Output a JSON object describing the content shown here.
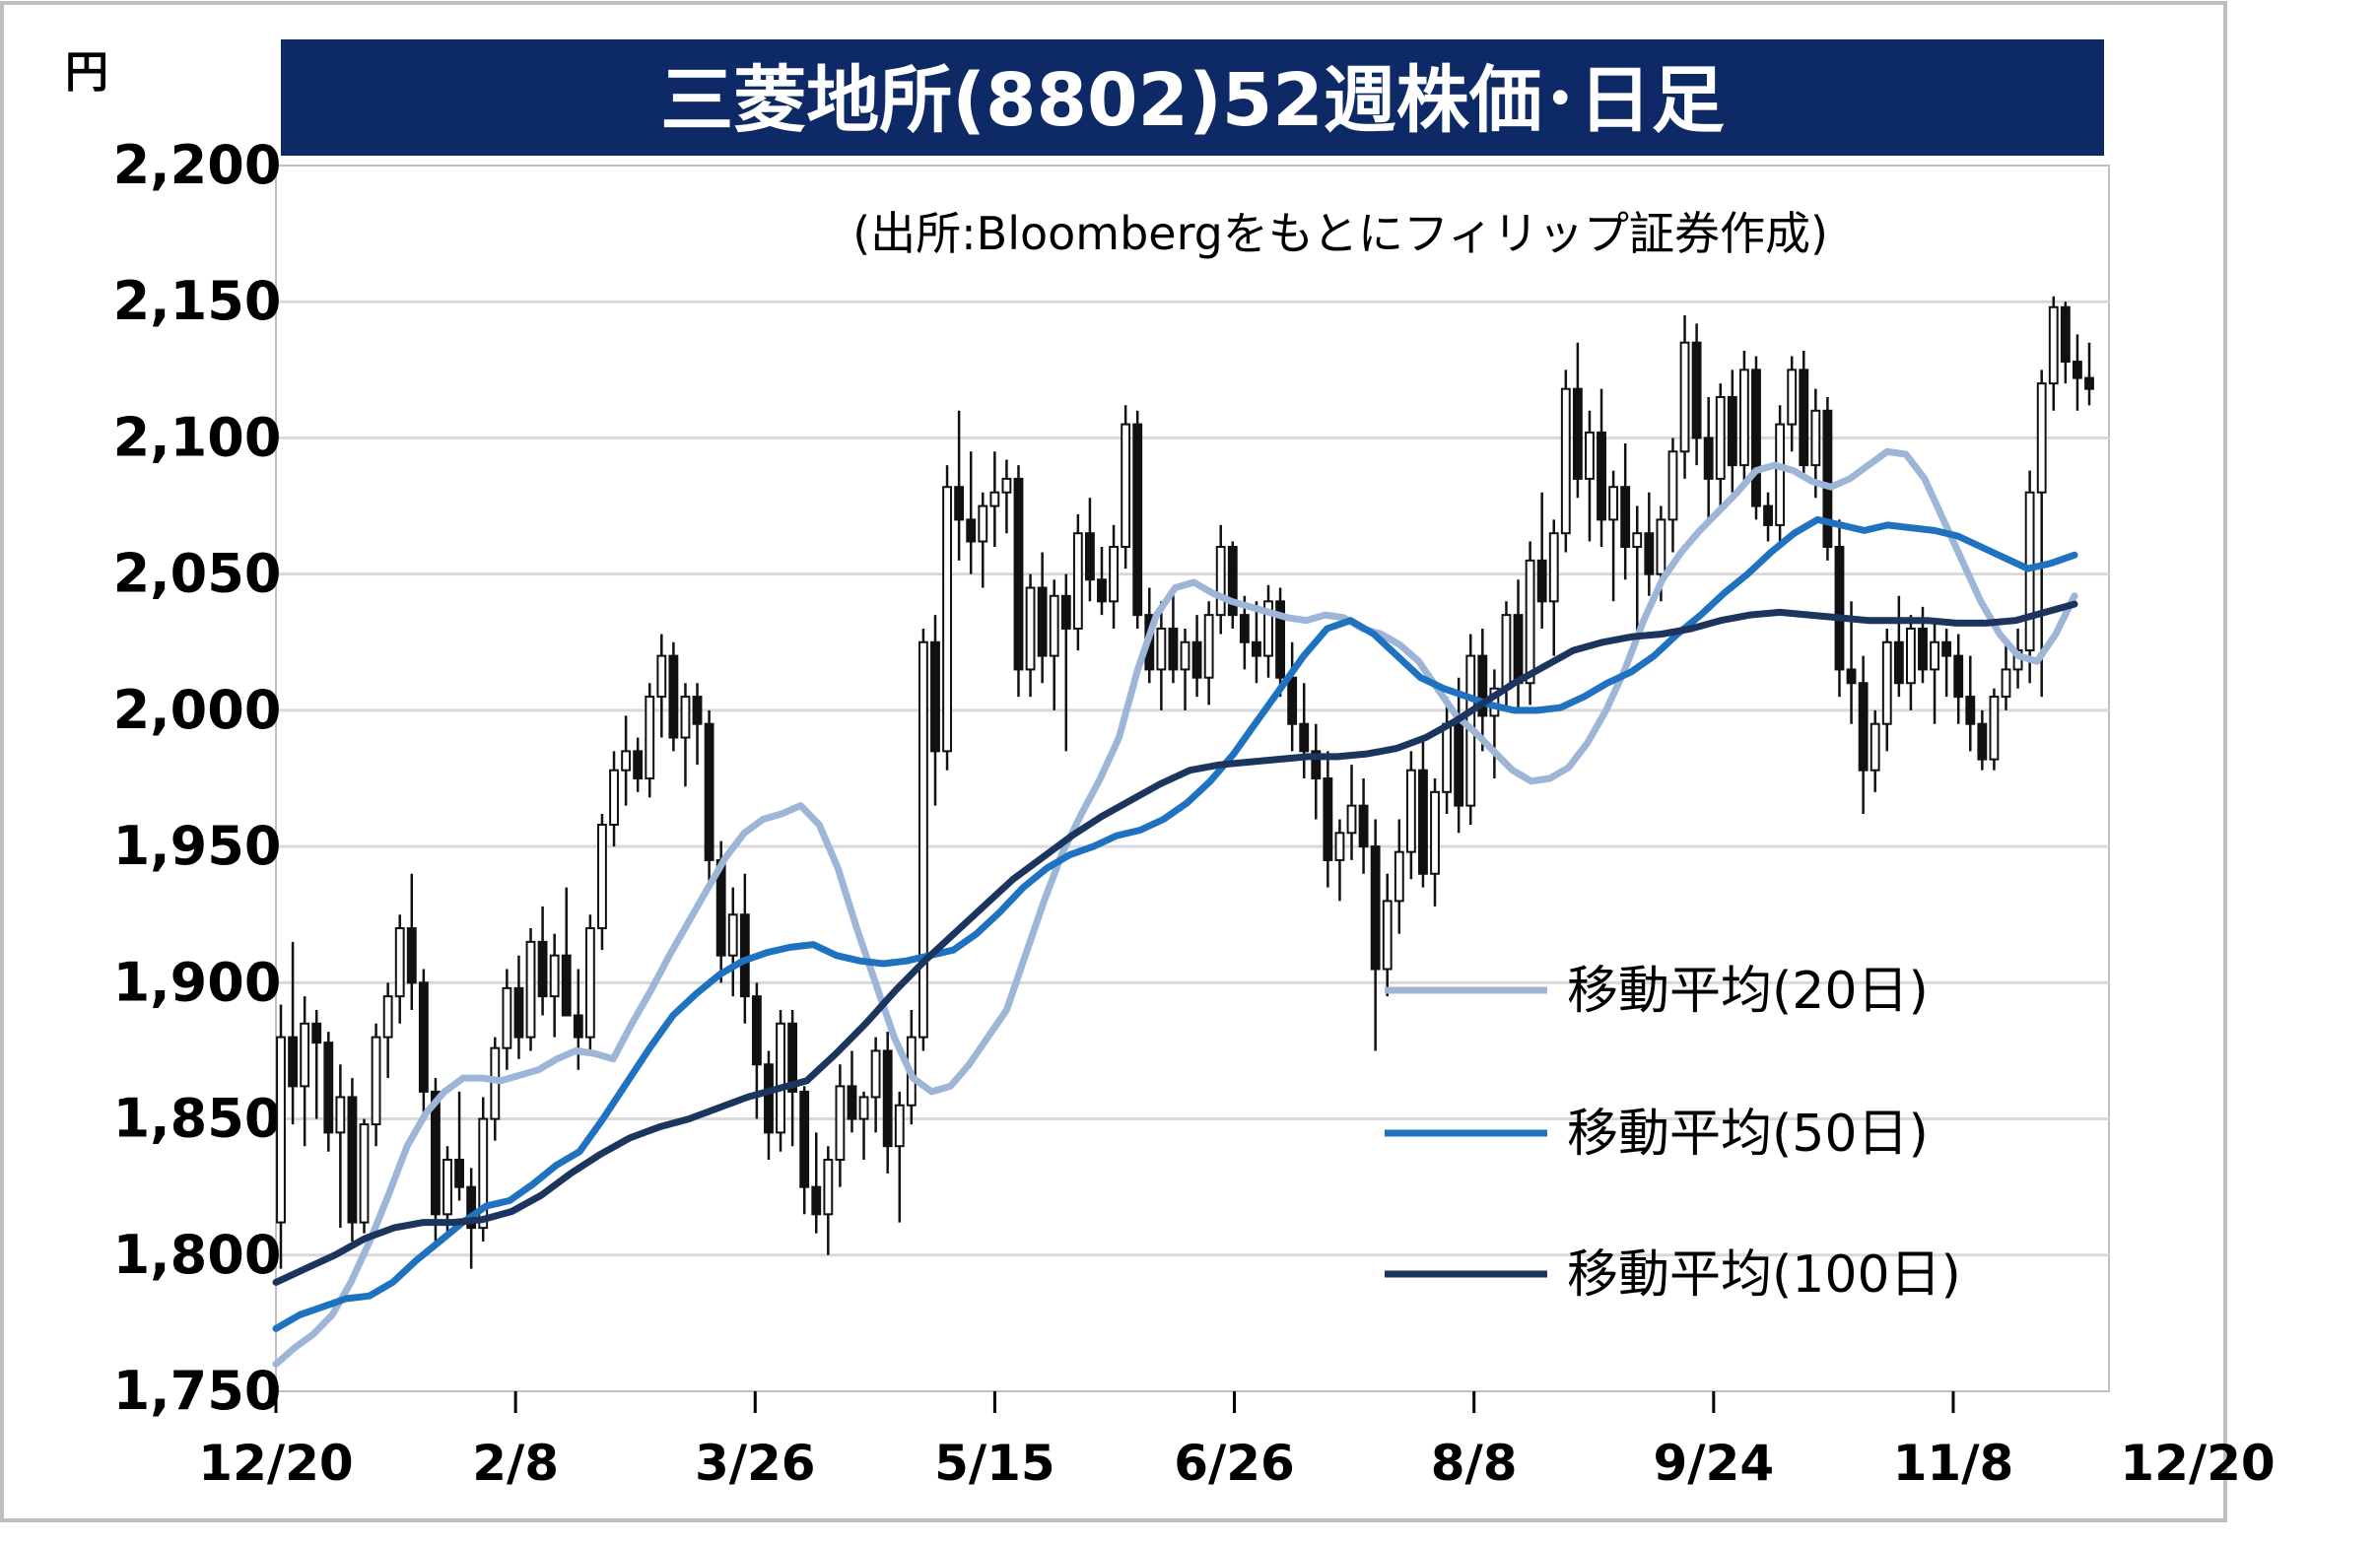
{
  "chart_data": {
    "type": "candlestick",
    "title": "三菱地所(8802)52週株価･日足",
    "source_note": "(出所:Bloombergをもとにフィリップ証券作成)",
    "y_unit": "円",
    "ylim": [
      1750,
      2200
    ],
    "y_ticks": [
      "1,750",
      "1,800",
      "1,850",
      "1,900",
      "1,950",
      "2,000",
      "2,050",
      "2,100",
      "2,150",
      "2,200"
    ],
    "x_ticks": [
      "12/20",
      "2/8",
      "3/26",
      "5/15",
      "6/26",
      "8/8",
      "9/24",
      "11/8",
      "12/20"
    ],
    "grid": true,
    "legend_position": "bottom-right",
    "colors": {
      "title_bg": "#0d2a66",
      "ma20": "#9db5d6",
      "ma50": "#1f72c0",
      "ma100": "#1c355e",
      "candle": "#111111"
    },
    "candles_ohlc": [
      [
        1812,
        1892,
        1795,
        1880
      ],
      [
        1880,
        1915,
        1848,
        1862
      ],
      [
        1862,
        1895,
        1840,
        1885
      ],
      [
        1885,
        1890,
        1850,
        1878
      ],
      [
        1878,
        1882,
        1838,
        1845
      ],
      [
        1845,
        1870,
        1810,
        1858
      ],
      [
        1858,
        1865,
        1805,
        1812
      ],
      [
        1812,
        1850,
        1808,
        1848
      ],
      [
        1848,
        1885,
        1840,
        1880
      ],
      [
        1880,
        1900,
        1865,
        1895
      ],
      [
        1895,
        1925,
        1885,
        1920
      ],
      [
        1920,
        1940,
        1890,
        1900
      ],
      [
        1900,
        1905,
        1850,
        1860
      ],
      [
        1860,
        1865,
        1805,
        1815
      ],
      [
        1815,
        1840,
        1808,
        1835
      ],
      [
        1835,
        1860,
        1820,
        1825
      ],
      [
        1825,
        1832,
        1795,
        1810
      ],
      [
        1810,
        1858,
        1805,
        1850
      ],
      [
        1850,
        1880,
        1842,
        1876
      ],
      [
        1876,
        1905,
        1868,
        1898
      ],
      [
        1898,
        1910,
        1872,
        1880
      ],
      [
        1880,
        1920,
        1875,
        1915
      ],
      [
        1915,
        1928,
        1888,
        1895
      ],
      [
        1895,
        1918,
        1880,
        1910
      ],
      [
        1910,
        1935,
        1898,
        1888
      ],
      [
        1888,
        1905,
        1868,
        1880
      ],
      [
        1880,
        1925,
        1875,
        1920
      ],
      [
        1920,
        1962,
        1912,
        1958
      ],
      [
        1958,
        1985,
        1950,
        1978
      ],
      [
        1978,
        1998,
        1965,
        1985
      ],
      [
        1985,
        1990,
        1970,
        1975
      ],
      [
        1975,
        2010,
        1968,
        2005
      ],
      [
        2005,
        2028,
        1990,
        2020
      ],
      [
        2020,
        2025,
        1985,
        1990
      ],
      [
        1990,
        2010,
        1972,
        2005
      ],
      [
        2005,
        2010,
        1980,
        1995
      ],
      [
        1995,
        2000,
        1935,
        1945
      ],
      [
        1945,
        1952,
        1900,
        1910
      ],
      [
        1910,
        1935,
        1895,
        1925
      ],
      [
        1925,
        1940,
        1885,
        1895
      ],
      [
        1895,
        1900,
        1850,
        1870
      ],
      [
        1870,
        1875,
        1835,
        1845
      ],
      [
        1845,
        1890,
        1838,
        1885
      ],
      [
        1885,
        1890,
        1840,
        1860
      ],
      [
        1860,
        1862,
        1815,
        1825
      ],
      [
        1825,
        1845,
        1808,
        1815
      ],
      [
        1815,
        1840,
        1800,
        1835
      ],
      [
        1835,
        1870,
        1825,
        1862
      ],
      [
        1862,
        1875,
        1845,
        1850
      ],
      [
        1850,
        1860,
        1835,
        1858
      ],
      [
        1858,
        1880,
        1845,
        1875
      ],
      [
        1875,
        1882,
        1830,
        1840
      ],
      [
        1840,
        1860,
        1812,
        1855
      ],
      [
        1855,
        1890,
        1848,
        1880
      ],
      [
        1880,
        2030,
        1875,
        2025
      ],
      [
        2025,
        2035,
        1965,
        1985
      ],
      [
        1985,
        2090,
        1978,
        2082
      ],
      [
        2082,
        2110,
        2055,
        2070
      ],
      [
        2070,
        2095,
        2050,
        2062
      ],
      [
        2062,
        2080,
        2045,
        2075
      ],
      [
        2075,
        2095,
        2060,
        2080
      ],
      [
        2080,
        2092,
        2065,
        2085
      ],
      [
        2085,
        2090,
        2005,
        2015
      ],
      [
        2015,
        2050,
        2005,
        2045
      ],
      [
        2045,
        2058,
        2010,
        2020
      ],
      [
        2020,
        2048,
        2000,
        2042
      ],
      [
        2042,
        2050,
        1985,
        2030
      ],
      [
        2030,
        2072,
        2022,
        2065
      ],
      [
        2065,
        2078,
        2040,
        2048
      ],
      [
        2048,
        2060,
        2035,
        2040
      ],
      [
        2040,
        2068,
        2030,
        2060
      ],
      [
        2060,
        2112,
        2052,
        2105
      ],
      [
        2105,
        2110,
        2030,
        2035
      ],
      [
        2035,
        2045,
        2010,
        2015
      ],
      [
        2015,
        2040,
        2000,
        2030
      ],
      [
        2030,
        2045,
        2010,
        2015
      ],
      [
        2015,
        2030,
        2000,
        2025
      ],
      [
        2025,
        2035,
        2005,
        2012
      ],
      [
        2012,
        2040,
        2002,
        2035
      ],
      [
        2035,
        2068,
        2028,
        2060
      ],
      [
        2060,
        2062,
        2030,
        2035
      ],
      [
        2035,
        2042,
        2015,
        2025
      ],
      [
        2025,
        2040,
        2010,
        2020
      ],
      [
        2020,
        2046,
        2012,
        2040
      ],
      [
        2040,
        2045,
        2005,
        2012
      ],
      [
        2012,
        2025,
        1985,
        1995
      ],
      [
        1995,
        2010,
        1975,
        1985
      ],
      [
        1985,
        1995,
        1960,
        1975
      ],
      [
        1975,
        1985,
        1935,
        1945
      ],
      [
        1945,
        1960,
        1930,
        1955
      ],
      [
        1955,
        1980,
        1945,
        1965
      ],
      [
        1965,
        1975,
        1940,
        1950
      ],
      [
        1950,
        1960,
        1875,
        1905
      ],
      [
        1905,
        1940,
        1895,
        1930
      ],
      [
        1930,
        1960,
        1918,
        1948
      ],
      [
        1948,
        1985,
        1938,
        1978
      ],
      [
        1978,
        1990,
        1935,
        1940
      ],
      [
        1940,
        1975,
        1928,
        1970
      ],
      [
        1970,
        2005,
        1962,
        1995
      ],
      [
        1995,
        2012,
        1955,
        1965
      ],
      [
        1965,
        2028,
        1958,
        2020
      ],
      [
        2020,
        2030,
        1985,
        1998
      ],
      [
        1998,
        2015,
        1975,
        2008
      ],
      [
        2008,
        2040,
        2000,
        2035
      ],
      [
        2035,
        2048,
        2000,
        2010
      ],
      [
        2010,
        2062,
        2002,
        2055
      ],
      [
        2055,
        2080,
        2030,
        2040
      ],
      [
        2040,
        2070,
        2020,
        2065
      ],
      [
        2065,
        2125,
        2058,
        2118
      ],
      [
        2118,
        2135,
        2078,
        2085
      ],
      [
        2085,
        2110,
        2062,
        2102
      ],
      [
        2102,
        2118,
        2060,
        2070
      ],
      [
        2070,
        2088,
        2040,
        2082
      ],
      [
        2082,
        2098,
        2048,
        2060
      ],
      [
        2060,
        2075,
        2025,
        2065
      ],
      [
        2065,
        2080,
        2042,
        2050
      ],
      [
        2050,
        2075,
        2040,
        2070
      ],
      [
        2070,
        2100,
        2058,
        2095
      ],
      [
        2095,
        2145,
        2085,
        2135
      ],
      [
        2135,
        2142,
        2090,
        2100
      ],
      [
        2100,
        2115,
        2068,
        2085
      ],
      [
        2085,
        2120,
        2075,
        2115
      ],
      [
        2115,
        2125,
        2080,
        2090
      ],
      [
        2090,
        2132,
        2082,
        2125
      ],
      [
        2125,
        2130,
        2070,
        2075
      ],
      [
        2075,
        2080,
        2062,
        2068
      ],
      [
        2068,
        2112,
        2060,
        2105
      ],
      [
        2105,
        2130,
        2095,
        2125
      ],
      [
        2125,
        2132,
        2085,
        2090
      ],
      [
        2090,
        2118,
        2078,
        2110
      ],
      [
        2110,
        2115,
        2055,
        2060
      ],
      [
        2060,
        2070,
        2005,
        2015
      ],
      [
        2015,
        2040,
        1995,
        2010
      ],
      [
        2010,
        2020,
        1962,
        1978
      ],
      [
        1978,
        2000,
        1970,
        1995
      ],
      [
        1995,
        2030,
        1985,
        2025
      ],
      [
        2025,
        2042,
        2005,
        2010
      ],
      [
        2010,
        2035,
        2000,
        2030
      ],
      [
        2030,
        2038,
        2010,
        2015
      ],
      [
        2015,
        2032,
        1995,
        2025
      ],
      [
        2025,
        2030,
        2005,
        2020
      ],
      [
        2020,
        2028,
        1995,
        2005
      ],
      [
        2005,
        2020,
        1985,
        1995
      ],
      [
        1995,
        2000,
        1978,
        1982
      ],
      [
        1982,
        2008,
        1978,
        2005
      ],
      [
        2005,
        2025,
        2000,
        2015
      ],
      [
        2015,
        2030,
        2008,
        2022
      ],
      [
        2022,
        2088,
        2010,
        2080
      ],
      [
        2080,
        2125,
        2005,
        2120
      ],
      [
        2120,
        2152,
        2110,
        2148
      ],
      [
        2148,
        2150,
        2120,
        2128
      ],
      [
        2128,
        2138,
        2110,
        2122
      ],
      [
        2122,
        2135,
        2112,
        2118
      ]
    ],
    "series": [
      {
        "name": "移動平均(20日)",
        "values": [
          1760,
          1766,
          1771,
          1778,
          1790,
          1805,
          1822,
          1840,
          1852,
          1860,
          1865,
          1865,
          1864,
          1866,
          1868,
          1872,
          1875,
          1874,
          1872,
          1885,
          1897,
          1910,
          1922,
          1934,
          1946,
          1955,
          1960,
          1962,
          1965,
          1958,
          1942,
          1920,
          1900,
          1880,
          1865,
          1860,
          1862,
          1870,
          1880,
          1890,
          1910,
          1930,
          1948,
          1962,
          1975,
          1990,
          2015,
          2035,
          2045,
          2047,
          2043,
          2040,
          2038,
          2036,
          2034,
          2033,
          2035,
          2034,
          2030,
          2028,
          2024,
          2018,
          2008,
          1998,
          1992,
          1985,
          1978,
          1974,
          1975,
          1979,
          1988,
          2000,
          2015,
          2033,
          2048,
          2058,
          2066,
          2073,
          2080,
          2088,
          2090,
          2088,
          2084,
          2082,
          2085,
          2090,
          2095,
          2094,
          2085,
          2070,
          2055,
          2040,
          2028,
          2020,
          2018,
          2028,
          2042
        ]
      },
      {
        "name": "移動平均(50日)",
        "values": [
          1773,
          1778,
          1781,
          1784,
          1785,
          1790,
          1798,
          1805,
          1812,
          1818,
          1820,
          1826,
          1833,
          1838,
          1850,
          1863,
          1876,
          1888,
          1896,
          1903,
          1908,
          1911,
          1913,
          1914,
          1910,
          1908,
          1907,
          1908,
          1910,
          1912,
          1918,
          1926,
          1935,
          1942,
          1947,
          1950,
          1954,
          1956,
          1960,
          1966,
          1974,
          1984,
          1996,
          2008,
          2020,
          2030,
          2033,
          2028,
          2020,
          2012,
          2008,
          2005,
          2002,
          2000,
          2000,
          2001,
          2005,
          2010,
          2014,
          2020,
          2028,
          2035,
          2043,
          2050,
          2058,
          2065,
          2070,
          2068,
          2066,
          2068,
          2067,
          2066,
          2064,
          2060,
          2056,
          2052,
          2054,
          2057
        ]
      },
      {
        "name": "移動平均(100日)",
        "values": [
          1790,
          1795,
          1800,
          1806,
          1810,
          1812,
          1812,
          1813,
          1816,
          1822,
          1830,
          1837,
          1843,
          1847,
          1850,
          1854,
          1858,
          1861,
          1864,
          1874,
          1885,
          1897,
          1908,
          1918,
          1928,
          1938,
          1946,
          1954,
          1961,
          1967,
          1973,
          1978,
          1980,
          1981,
          1982,
          1983,
          1983,
          1984,
          1986,
          1990,
          1996,
          2003,
          2010,
          2016,
          2022,
          2025,
          2027,
          2028,
          2030,
          2033,
          2035,
          2036,
          2035,
          2034,
          2033,
          2033,
          2033,
          2032,
          2032,
          2033,
          2036,
          2039
        ]
      }
    ]
  }
}
